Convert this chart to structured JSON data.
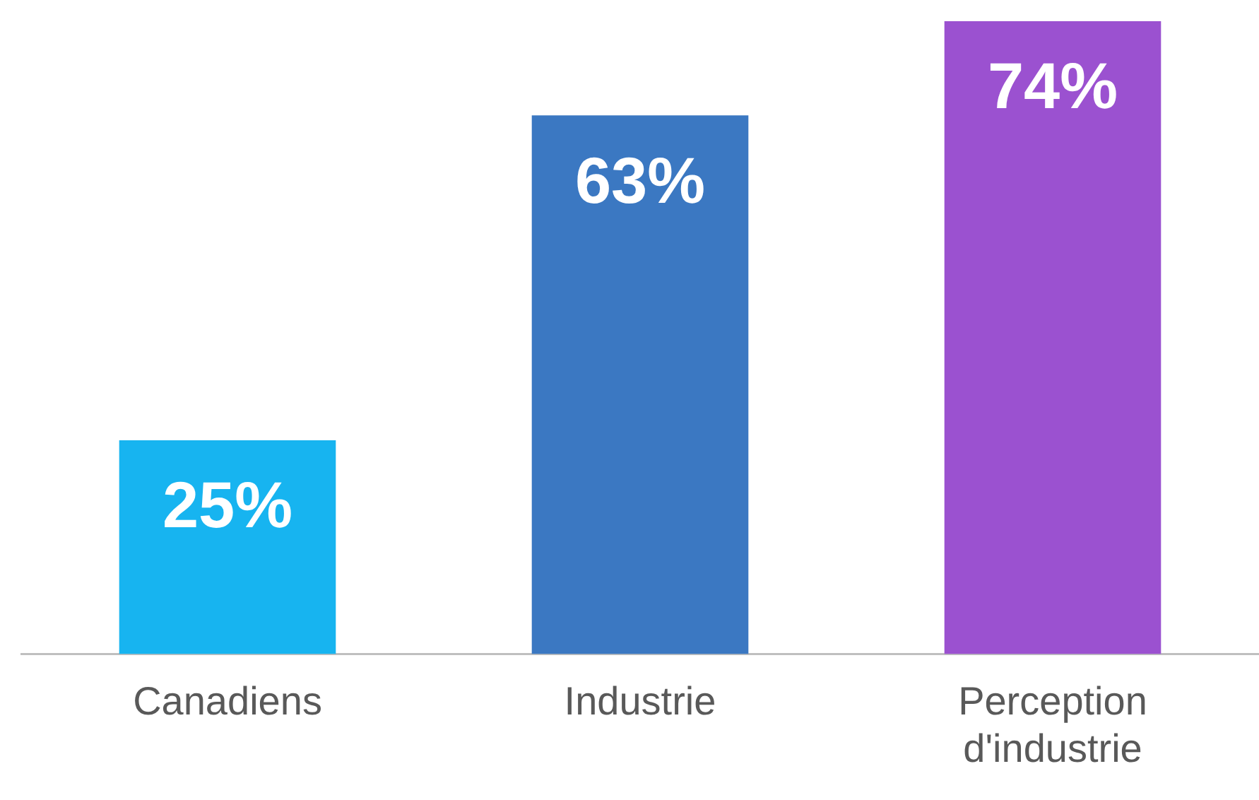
{
  "chart_data": {
    "type": "bar",
    "categories": [
      "Canadiens",
      "Industrie",
      "Perception d'industrie"
    ],
    "values": [
      25,
      63,
      74
    ],
    "colors": [
      "#17b4f0",
      "#3b78c2",
      "#9b51d0"
    ],
    "value_labels": [
      "25%",
      "63%",
      "74%"
    ],
    "grid": false,
    "legend": false
  }
}
